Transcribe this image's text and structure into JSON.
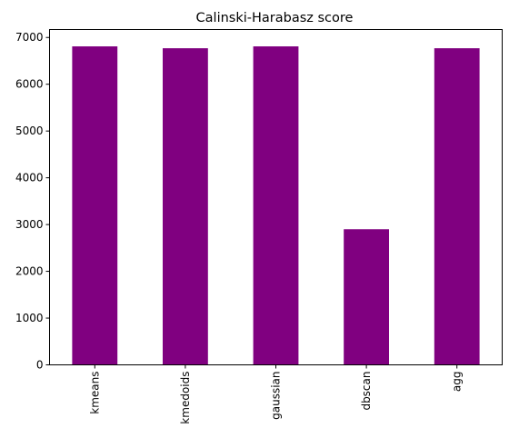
{
  "chart_data": {
    "type": "bar",
    "title": "Calinski-Harabasz score",
    "xlabel": "",
    "ylabel": "",
    "categories": [
      "kmeans",
      "kmedoids",
      "gaussian",
      "dbscan",
      "agg"
    ],
    "values": [
      6810,
      6770,
      6810,
      2900,
      6770
    ],
    "ylim": [
      0,
      7170
    ],
    "yticks": [
      0,
      1000,
      2000,
      3000,
      4000,
      5000,
      6000,
      7000
    ],
    "bar_color": "#800080",
    "grid": false,
    "legend": "none"
  }
}
